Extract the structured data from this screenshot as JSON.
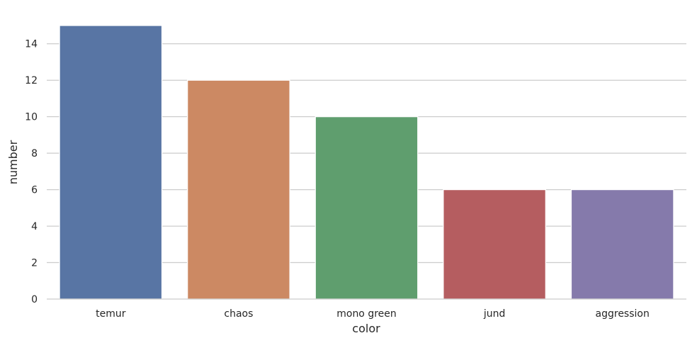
{
  "chart_data": {
    "type": "bar",
    "title": "",
    "xlabel": "color",
    "ylabel": "number",
    "categories": [
      "temur",
      "chaos",
      "mono green",
      "jund",
      "aggression"
    ],
    "values": [
      15,
      12,
      10,
      6,
      6
    ],
    "colors": [
      "#5875a4",
      "#cc8963",
      "#5f9e6e",
      "#b55d60",
      "#857aab"
    ],
    "ylim": [
      0,
      15
    ],
    "yticks": [
      0,
      2,
      4,
      6,
      8,
      10,
      12,
      14
    ],
    "grid": "horizontal",
    "legend": "none"
  }
}
